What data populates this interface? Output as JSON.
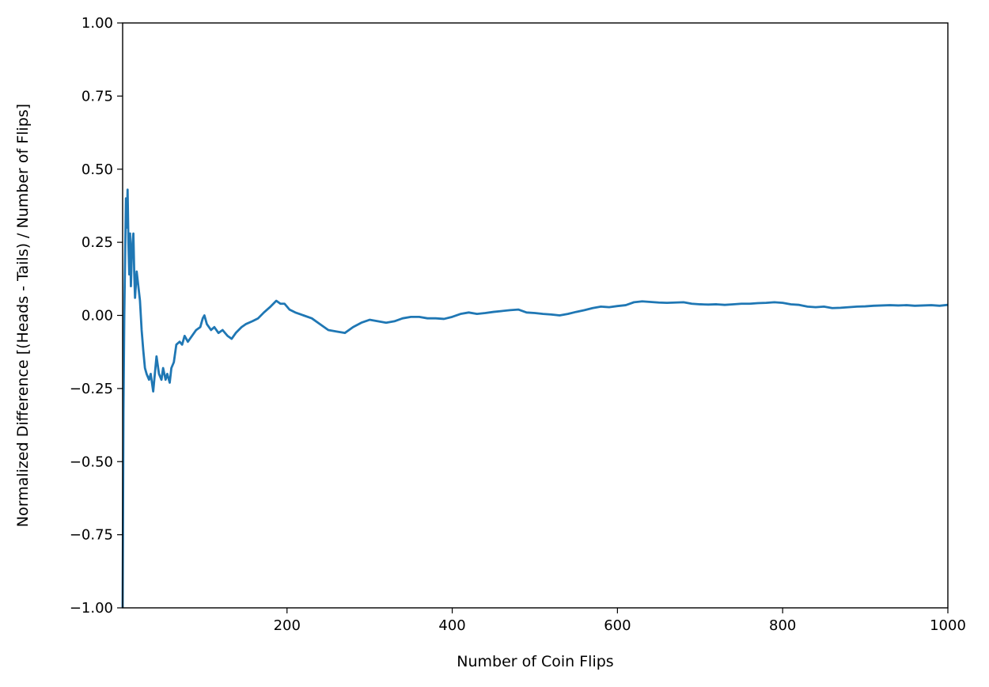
{
  "chart_data": {
    "type": "line",
    "title": "",
    "xlabel": "Number of Coin Flips",
    "ylabel": "Normalized Difference [(Heads - Tails) / Number of Flips]",
    "xlim": [
      1,
      1000
    ],
    "ylim": [
      -1.0,
      1.0
    ],
    "xticks": [
      200,
      400,
      600,
      800,
      1000
    ],
    "xtick_labels": [
      "200",
      "400",
      "600",
      "800",
      "1000"
    ],
    "yticks": [
      1.0,
      0.75,
      0.5,
      0.25,
      0.0,
      -0.25,
      -0.5,
      -0.75,
      -1.0
    ],
    "ytick_labels": [
      "1.00",
      "0.75",
      "0.50",
      "0.25",
      "0.00",
      "−0.25",
      "−0.50",
      "−0.75",
      "−1.00"
    ],
    "grid": false,
    "series": [
      {
        "color": "#1f77b4",
        "points": [
          [
            1,
            -1.0
          ],
          [
            2,
            -0.33
          ],
          [
            3,
            0.0
          ],
          [
            4,
            0.2
          ],
          [
            5,
            0.4
          ],
          [
            6,
            0.3
          ],
          [
            7,
            0.43
          ],
          [
            8,
            0.25
          ],
          [
            9,
            0.14
          ],
          [
            10,
            0.28
          ],
          [
            11,
            0.1
          ],
          [
            12,
            0.2
          ],
          [
            13,
            0.25
          ],
          [
            14,
            0.28
          ],
          [
            15,
            0.15
          ],
          [
            16,
            0.06
          ],
          [
            18,
            0.15
          ],
          [
            20,
            0.1
          ],
          [
            22,
            0.05
          ],
          [
            24,
            -0.05
          ],
          [
            26,
            -0.12
          ],
          [
            28,
            -0.18
          ],
          [
            30,
            -0.2
          ],
          [
            33,
            -0.22
          ],
          [
            35,
            -0.2
          ],
          [
            38,
            -0.26
          ],
          [
            40,
            -0.2
          ],
          [
            42,
            -0.14
          ],
          [
            45,
            -0.2
          ],
          [
            48,
            -0.22
          ],
          [
            50,
            -0.18
          ],
          [
            53,
            -0.22
          ],
          [
            55,
            -0.2
          ],
          [
            58,
            -0.23
          ],
          [
            60,
            -0.18
          ],
          [
            63,
            -0.16
          ],
          [
            66,
            -0.1
          ],
          [
            70,
            -0.09
          ],
          [
            73,
            -0.1
          ],
          [
            76,
            -0.07
          ],
          [
            80,
            -0.09
          ],
          [
            85,
            -0.07
          ],
          [
            90,
            -0.05
          ],
          [
            95,
            -0.04
          ],
          [
            98,
            -0.01
          ],
          [
            100,
            0.0
          ],
          [
            103,
            -0.03
          ],
          [
            108,
            -0.05
          ],
          [
            112,
            -0.04
          ],
          [
            117,
            -0.06
          ],
          [
            122,
            -0.05
          ],
          [
            128,
            -0.07
          ],
          [
            133,
            -0.08
          ],
          [
            138,
            -0.06
          ],
          [
            145,
            -0.04
          ],
          [
            150,
            -0.03
          ],
          [
            158,
            -0.02
          ],
          [
            165,
            -0.01
          ],
          [
            172,
            0.01
          ],
          [
            180,
            0.03
          ],
          [
            187,
            0.05
          ],
          [
            192,
            0.04
          ],
          [
            197,
            0.04
          ],
          [
            203,
            0.02
          ],
          [
            210,
            0.01
          ],
          [
            220,
            0.0
          ],
          [
            230,
            -0.01
          ],
          [
            240,
            -0.03
          ],
          [
            250,
            -0.05
          ],
          [
            260,
            -0.055
          ],
          [
            270,
            -0.06
          ],
          [
            280,
            -0.04
          ],
          [
            290,
            -0.025
          ],
          [
            300,
            -0.015
          ],
          [
            310,
            -0.02
          ],
          [
            320,
            -0.025
          ],
          [
            330,
            -0.02
          ],
          [
            340,
            -0.01
          ],
          [
            350,
            -0.005
          ],
          [
            360,
            -0.005
          ],
          [
            370,
            -0.01
          ],
          [
            380,
            -0.01
          ],
          [
            390,
            -0.012
          ],
          [
            400,
            -0.005
          ],
          [
            410,
            0.005
          ],
          [
            420,
            0.01
          ],
          [
            430,
            0.005
          ],
          [
            440,
            0.008
          ],
          [
            450,
            0.012
          ],
          [
            460,
            0.015
          ],
          [
            470,
            0.018
          ],
          [
            480,
            0.02
          ],
          [
            490,
            0.01
          ],
          [
            500,
            0.008
          ],
          [
            510,
            0.005
          ],
          [
            520,
            0.003
          ],
          [
            530,
            0.0
          ],
          [
            540,
            0.005
          ],
          [
            550,
            0.012
          ],
          [
            560,
            0.018
          ],
          [
            570,
            0.025
          ],
          [
            580,
            0.03
          ],
          [
            590,
            0.028
          ],
          [
            600,
            0.032
          ],
          [
            610,
            0.035
          ],
          [
            620,
            0.045
          ],
          [
            630,
            0.048
          ],
          [
            640,
            0.046
          ],
          [
            650,
            0.044
          ],
          [
            660,
            0.043
          ],
          [
            670,
            0.044
          ],
          [
            680,
            0.045
          ],
          [
            690,
            0.04
          ],
          [
            700,
            0.038
          ],
          [
            710,
            0.037
          ],
          [
            720,
            0.038
          ],
          [
            730,
            0.036
          ],
          [
            740,
            0.038
          ],
          [
            750,
            0.04
          ],
          [
            760,
            0.04
          ],
          [
            770,
            0.042
          ],
          [
            780,
            0.043
          ],
          [
            790,
            0.045
          ],
          [
            800,
            0.043
          ],
          [
            810,
            0.038
          ],
          [
            820,
            0.036
          ],
          [
            830,
            0.03
          ],
          [
            840,
            0.028
          ],
          [
            850,
            0.03
          ],
          [
            860,
            0.025
          ],
          [
            870,
            0.026
          ],
          [
            880,
            0.028
          ],
          [
            890,
            0.03
          ],
          [
            900,
            0.031
          ],
          [
            910,
            0.033
          ],
          [
            920,
            0.034
          ],
          [
            930,
            0.035
          ],
          [
            940,
            0.034
          ],
          [
            950,
            0.035
          ],
          [
            960,
            0.033
          ],
          [
            970,
            0.034
          ],
          [
            980,
            0.035
          ],
          [
            990,
            0.033
          ],
          [
            1000,
            0.036
          ]
        ]
      }
    ]
  }
}
